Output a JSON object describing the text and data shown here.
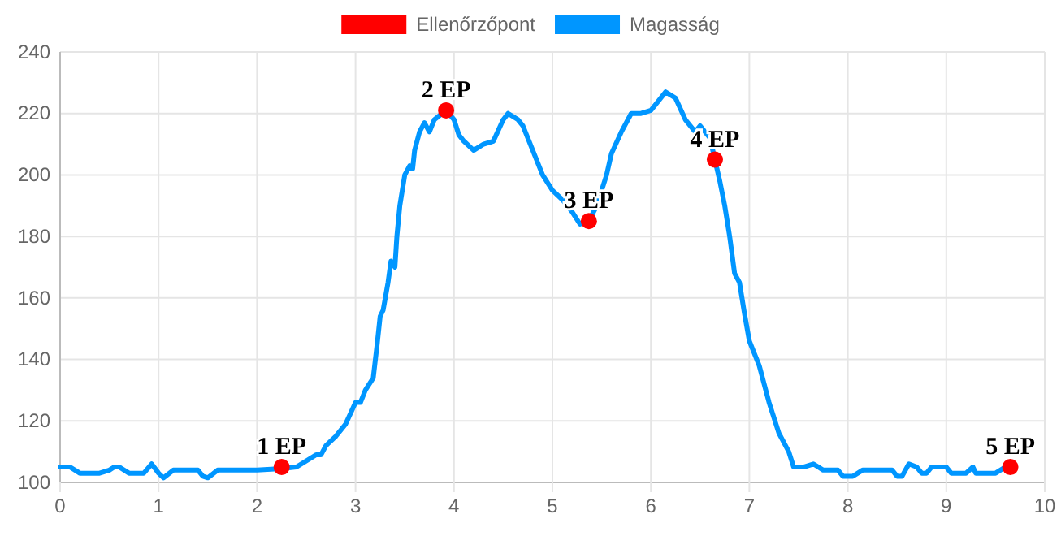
{
  "chart_data": {
    "type": "line",
    "xlim": [
      0,
      10
    ],
    "ylim": [
      100,
      240
    ],
    "xticks": [
      0,
      1,
      2,
      3,
      4,
      5,
      6,
      7,
      8,
      9,
      10
    ],
    "yticks": [
      100,
      120,
      140,
      160,
      180,
      200,
      220,
      240
    ],
    "grid": true,
    "legend": "top",
    "series": [
      {
        "name": "Ellenőrzőpont",
        "type": "scatter",
        "color": "#ff0000",
        "marker": "circle",
        "x": [
          2.25,
          3.92,
          5.37,
          6.65,
          9.65
        ],
        "values": [
          105,
          221,
          185,
          205,
          105
        ]
      },
      {
        "name": "Magasság",
        "color": "#0096ff",
        "marker": "none",
        "line_style": "solid",
        "x": [
          0,
          0.1,
          0.2,
          0.4,
          0.5,
          0.55,
          0.6,
          0.7,
          0.85,
          0.93,
          1.0,
          1.05,
          1.15,
          1.4,
          1.45,
          1.5,
          1.6,
          2.0,
          2.25,
          2.4,
          2.5,
          2.6,
          2.65,
          2.7,
          2.8,
          2.9,
          3.0,
          3.05,
          3.1,
          3.18,
          3.22,
          3.25,
          3.28,
          3.33,
          3.36,
          3.4,
          3.42,
          3.45,
          3.5,
          3.55,
          3.58,
          3.6,
          3.65,
          3.7,
          3.75,
          3.8,
          3.92,
          4.0,
          4.05,
          4.1,
          4.2,
          4.3,
          4.4,
          4.5,
          4.55,
          4.65,
          4.7,
          4.8,
          4.9,
          5.0,
          5.1,
          5.2,
          5.28,
          5.37,
          5.45,
          5.55,
          5.6,
          5.7,
          5.8,
          5.9,
          6.0,
          6.05,
          6.15,
          6.25,
          6.35,
          6.45,
          6.5,
          6.6,
          6.65,
          6.7,
          6.75,
          6.8,
          6.85,
          6.9,
          6.95,
          7.0,
          7.1,
          7.2,
          7.3,
          7.4,
          7.45,
          7.55,
          7.65,
          7.7,
          7.75,
          7.9,
          7.95,
          8.05,
          8.15,
          8.3,
          8.45,
          8.5,
          8.55,
          8.62,
          8.7,
          8.75,
          8.8,
          8.85,
          9.0,
          9.05,
          9.2,
          9.27,
          9.3,
          9.5,
          9.6
        ],
        "values": [
          105,
          105,
          103,
          103,
          104,
          105,
          105,
          103,
          103,
          106,
          103,
          101.5,
          104,
          104,
          102,
          101.5,
          104,
          104,
          104.5,
          105,
          107,
          109,
          109,
          112,
          115,
          119,
          126,
          126,
          130,
          134,
          145,
          154,
          156,
          165,
          172,
          170,
          180,
          190,
          200,
          203,
          202,
          208,
          214,
          217,
          214,
          218,
          221,
          218,
          213,
          211,
          208,
          210,
          211,
          218,
          220,
          218,
          216,
          208,
          200,
          195,
          192,
          188,
          184,
          185,
          190,
          200,
          207,
          214,
          220,
          220,
          221,
          223,
          227,
          225,
          218,
          214,
          216,
          212,
          205,
          198,
          190,
          180,
          168,
          165,
          155,
          146,
          138,
          126,
          116,
          110,
          105,
          105,
          106,
          105,
          104,
          104,
          102,
          102,
          104,
          104,
          104,
          102,
          102,
          106,
          105,
          103,
          103,
          105,
          105,
          103,
          103,
          105,
          103,
          103,
          105
        ]
      }
    ],
    "annotations": [
      {
        "text": "1 EP",
        "x": 2.25,
        "y": 105
      },
      {
        "text": "2 EP",
        "x": 3.92,
        "y": 221
      },
      {
        "text": "3 EP",
        "x": 5.37,
        "y": 185
      },
      {
        "text": "4 EP",
        "x": 6.65,
        "y": 205
      },
      {
        "text": "5 EP",
        "x": 9.65,
        "y": 105
      }
    ]
  }
}
